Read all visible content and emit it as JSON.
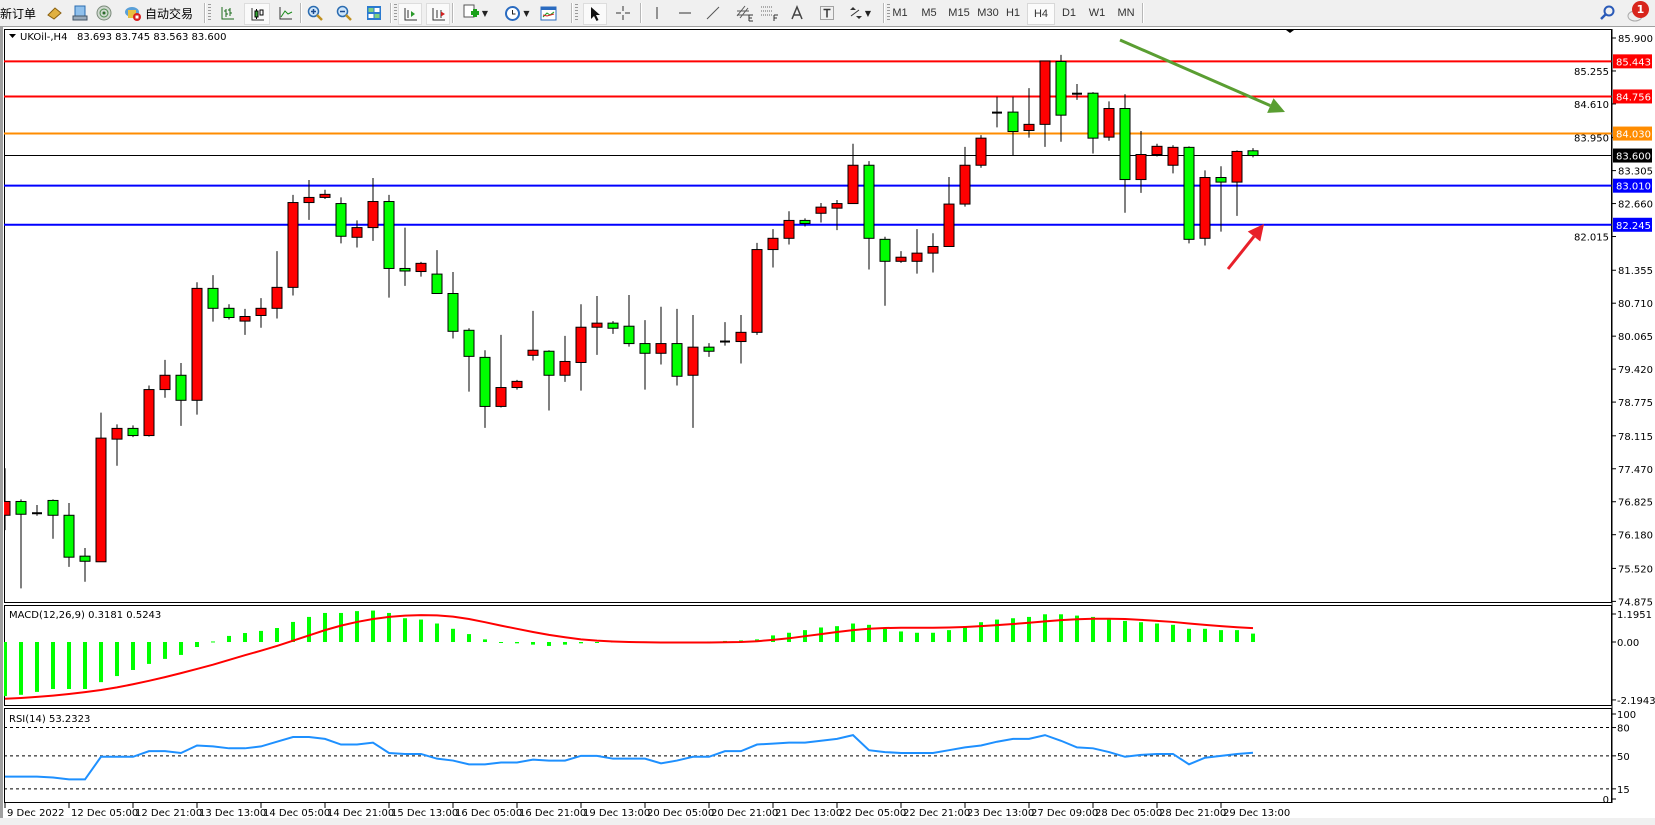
{
  "toolbar": {
    "new_order": "新订单",
    "autotrade": "自动交易",
    "periods": [
      "M1",
      "M5",
      "M15",
      "M30",
      "H1",
      "H4",
      "D1",
      "W1",
      "MN"
    ],
    "active_period": "H4",
    "notification_count": "1",
    "icons": [
      "book-icon",
      "terminal-icon",
      "signal-icon",
      "autotrade-icon",
      "bar-chart-icon",
      "candlestick-icon",
      "line-chart-icon",
      "zoom-in-icon",
      "zoom-out-icon",
      "tile-windows-icon",
      "auto-scroll-icon",
      "chart-shift-icon",
      "indicators-icon",
      "periods-clock-icon",
      "templates-icon",
      "cursor-icon",
      "crosshair-icon",
      "vertical-line-icon",
      "horizontal-line-icon",
      "trendline-icon",
      "equidistant-channel-icon",
      "fibonacci-icon",
      "text-icon",
      "text-label-icon",
      "arrows-icon",
      "search-icon",
      "notification-icon"
    ]
  },
  "chart": {
    "symbol": "UKOil-,H4",
    "ohlc": "83.693 83.745 83.563 83.600",
    "bull_color": "#ff0000",
    "bear_color": "#00ff00",
    "price_axis": [
      "85.900",
      "85.255",
      "84.610",
      "83.950",
      "83.305",
      "82.660",
      "82.015",
      "81.355",
      "80.710",
      "80.065",
      "79.420",
      "78.775",
      "78.115",
      "77.470",
      "76.825",
      "76.180",
      "75.520",
      "74.875"
    ],
    "levels": [
      {
        "price": "85.443",
        "color": "#ff0000",
        "text_color": "#ffffff"
      },
      {
        "price": "84.756",
        "color": "#ff0000",
        "text_color": "#ffffff"
      },
      {
        "price": "84.030",
        "color": "#ff8c00",
        "text_color": "#ffffff"
      },
      {
        "price": "83.600",
        "color": "#000000",
        "text_color": "#ffffff"
      },
      {
        "price": "83.010",
        "color": "#0000ff",
        "text_color": "#ffffff"
      },
      {
        "price": "82.245",
        "color": "#0000ff",
        "text_color": "#ffffff"
      }
    ],
    "time_labels": [
      "9 Dec 2022",
      "12 Dec 05:00",
      "12 Dec 21:00",
      "13 Dec 13:00",
      "14 Dec 05:00",
      "14 Dec 21:00",
      "15 Dec 13:00",
      "16 Dec 05:00",
      "16 Dec 21:00",
      "19 Dec 13:00",
      "20 Dec 05:00",
      "20 Dec 21:00",
      "21 Dec 13:00",
      "22 Dec 05:00",
      "22 Dec 21:00",
      "23 Dec 13:00",
      "27 Dec 09:00",
      "28 Dec 05:00",
      "28 Dec 21:00",
      "29 Dec 13:00"
    ],
    "candles_ohlc": [
      [
        76.56,
        77.48,
        76.27,
        76.83
      ],
      [
        76.83,
        76.87,
        75.13,
        76.58
      ],
      [
        76.6,
        76.76,
        76.55,
        76.59
      ],
      [
        76.85,
        76.87,
        76.1,
        76.56
      ],
      [
        76.56,
        76.8,
        75.55,
        75.74
      ],
      [
        75.76,
        75.92,
        75.26,
        75.66
      ],
      [
        75.65,
        78.57,
        75.65,
        78.07
      ],
      [
        78.05,
        78.34,
        77.53,
        78.26
      ],
      [
        78.26,
        78.32,
        78.09,
        78.12
      ],
      [
        78.12,
        79.1,
        78.1,
        79.02
      ],
      [
        79.02,
        79.6,
        78.86,
        79.3
      ],
      [
        79.3,
        79.54,
        78.31,
        78.81
      ],
      [
        78.81,
        81.12,
        78.53,
        81.0
      ],
      [
        81.0,
        81.26,
        80.35,
        80.61
      ],
      [
        80.61,
        80.69,
        80.39,
        80.43
      ],
      [
        80.36,
        80.6,
        80.09,
        80.45
      ],
      [
        80.47,
        80.81,
        80.23,
        80.61
      ],
      [
        80.61,
        81.73,
        80.41,
        81.02
      ],
      [
        81.02,
        82.83,
        80.86,
        82.68
      ],
      [
        82.68,
        83.12,
        82.34,
        82.78
      ],
      [
        82.78,
        82.93,
        82.75,
        82.84
      ],
      [
        82.66,
        82.78,
        81.88,
        82.02
      ],
      [
        82.0,
        82.33,
        81.8,
        82.19
      ],
      [
        82.19,
        83.16,
        81.93,
        82.7
      ],
      [
        82.7,
        82.83,
        80.82,
        81.39
      ],
      [
        81.39,
        82.19,
        81.05,
        81.34
      ],
      [
        81.33,
        81.52,
        81.23,
        81.49
      ],
      [
        81.28,
        81.75,
        80.9,
        80.9
      ],
      [
        80.9,
        81.32,
        80.02,
        80.16
      ],
      [
        80.18,
        80.22,
        78.98,
        79.67
      ],
      [
        79.65,
        79.79,
        78.27,
        78.69
      ],
      [
        78.69,
        80.09,
        78.67,
        79.06
      ],
      [
        79.06,
        79.21,
        79.02,
        79.18
      ],
      [
        79.69,
        80.56,
        79.59,
        79.79
      ],
      [
        79.77,
        79.79,
        78.61,
        79.3
      ],
      [
        79.3,
        80.07,
        79.17,
        79.57
      ],
      [
        79.55,
        80.69,
        79.0,
        80.24
      ],
      [
        80.24,
        80.85,
        79.7,
        80.32
      ],
      [
        80.32,
        80.36,
        80.11,
        80.22
      ],
      [
        80.26,
        80.87,
        79.86,
        79.92
      ],
      [
        79.92,
        80.38,
        79.02,
        79.73
      ],
      [
        79.73,
        80.64,
        79.51,
        79.92
      ],
      [
        79.92,
        80.6,
        79.1,
        79.28
      ],
      [
        79.3,
        80.48,
        78.27,
        79.85
      ],
      [
        79.85,
        79.93,
        79.66,
        79.77
      ],
      [
        79.96,
        80.34,
        79.88,
        79.95
      ],
      [
        79.96,
        80.48,
        79.53,
        80.14
      ],
      [
        80.14,
        81.89,
        80.09,
        81.76
      ],
      [
        81.76,
        82.16,
        81.41,
        81.98
      ],
      [
        81.98,
        82.51,
        81.86,
        82.33
      ],
      [
        82.33,
        82.37,
        82.21,
        82.27
      ],
      [
        82.47,
        82.67,
        82.29,
        82.59
      ],
      [
        82.57,
        82.73,
        82.14,
        82.66
      ],
      [
        82.66,
        83.83,
        82.66,
        83.41
      ],
      [
        83.41,
        83.49,
        81.37,
        81.98
      ],
      [
        81.96,
        82.01,
        80.66,
        81.53
      ],
      [
        81.53,
        81.73,
        81.5,
        81.61
      ],
      [
        81.53,
        82.16,
        81.29,
        81.69
      ],
      [
        81.69,
        82.08,
        81.31,
        81.82
      ],
      [
        81.82,
        83.18,
        81.82,
        82.65
      ],
      [
        82.65,
        83.77,
        82.6,
        83.41
      ],
      [
        83.41,
        84.0,
        83.36,
        83.94
      ],
      [
        84.44,
        84.75,
        84.15,
        84.43
      ],
      [
        84.45,
        84.75,
        83.6,
        84.07
      ],
      [
        84.09,
        84.92,
        83.95,
        84.21
      ],
      [
        84.21,
        85.45,
        83.77,
        85.45
      ],
      [
        85.44,
        85.57,
        83.87,
        84.39
      ],
      [
        84.81,
        85.0,
        84.69,
        84.8
      ],
      [
        84.82,
        84.84,
        83.64,
        83.94
      ],
      [
        83.96,
        84.66,
        83.89,
        84.52
      ],
      [
        84.52,
        84.8,
        82.48,
        83.13
      ],
      [
        83.13,
        84.08,
        82.87,
        83.62
      ],
      [
        83.62,
        83.83,
        83.58,
        83.78
      ],
      [
        83.41,
        83.8,
        83.25,
        83.76
      ],
      [
        83.76,
        83.78,
        81.88,
        81.96
      ],
      [
        81.98,
        83.31,
        81.84,
        83.17
      ],
      [
        83.17,
        83.39,
        82.11,
        83.08
      ],
      [
        83.08,
        83.7,
        82.42,
        83.68
      ],
      [
        83.693,
        83.745,
        83.563,
        83.6
      ]
    ],
    "arrow_colors": {
      "down_trend": "#5a9e32",
      "up_bounce": "#e8202a"
    }
  },
  "macd": {
    "label": "MACD(12,26,9) 0.3181 0.5243",
    "axis": [
      "1.1951",
      "0.00",
      "-2.1943"
    ],
    "histogram_color": "#00ff00",
    "signal_color": "#ff0000",
    "histogram": [
      -2.05,
      -2.0,
      -1.89,
      -1.78,
      -1.78,
      -1.78,
      -1.52,
      -1.29,
      -1.06,
      -0.83,
      -0.64,
      -0.49,
      -0.19,
      0.02,
      0.23,
      0.34,
      0.42,
      0.53,
      0.76,
      0.95,
      1.1,
      1.1,
      1.17,
      1.19,
      1.1,
      0.9,
      0.85,
      0.7,
      0.5,
      0.3,
      0.1,
      0.0,
      -0.05,
      -0.1,
      -0.15,
      -0.1,
      -0.05,
      0.0,
      0.02,
      0.03,
      0.02,
      0.0,
      -0.01,
      0.0,
      0.02,
      0.04,
      0.06,
      0.1,
      0.25,
      0.35,
      0.45,
      0.55,
      0.6,
      0.7,
      0.65,
      0.5,
      0.4,
      0.35,
      0.35,
      0.45,
      0.6,
      0.75,
      0.85,
      0.9,
      0.95,
      1.05,
      1.05,
      1.0,
      0.95,
      0.9,
      0.8,
      0.75,
      0.7,
      0.65,
      0.5,
      0.5,
      0.45,
      0.45,
      0.3181
    ],
    "signal": [
      -2.15,
      -2.12,
      -2.08,
      -2.03,
      -1.97,
      -1.9,
      -1.82,
      -1.72,
      -1.6,
      -1.47,
      -1.33,
      -1.18,
      -1.02,
      -0.86,
      -0.68,
      -0.5,
      -0.33,
      -0.15,
      0.05,
      0.25,
      0.45,
      0.62,
      0.76,
      0.87,
      0.95,
      1.0,
      1.02,
      1.01,
      0.96,
      0.87,
      0.75,
      0.62,
      0.5,
      0.38,
      0.27,
      0.18,
      0.1,
      0.05,
      0.02,
      0.0,
      -0.01,
      -0.02,
      -0.02,
      -0.02,
      -0.02,
      -0.01,
      0.0,
      0.03,
      0.08,
      0.14,
      0.22,
      0.3,
      0.38,
      0.45,
      0.5,
      0.53,
      0.54,
      0.54,
      0.54,
      0.55,
      0.57,
      0.6,
      0.64,
      0.68,
      0.73,
      0.78,
      0.83,
      0.86,
      0.88,
      0.88,
      0.87,
      0.84,
      0.8,
      0.76,
      0.7,
      0.65,
      0.6,
      0.56,
      0.5243
    ]
  },
  "rsi": {
    "label": "RSI(14) 53.2323",
    "axis": [
      "100",
      "80",
      "50",
      "15",
      "0"
    ],
    "levels": [
      80,
      50,
      15
    ],
    "line_color": "#1e90ff",
    "values": [
      28,
      28,
      28,
      27,
      25,
      25,
      49,
      49,
      49,
      55,
      55,
      53,
      61,
      60,
      58,
      58,
      60,
      65,
      70,
      70,
      68,
      62,
      62,
      64,
      53,
      52,
      52,
      47,
      45,
      41,
      41,
      43,
      43,
      46,
      45,
      45,
      50,
      50,
      47,
      47,
      47,
      42,
      45,
      49,
      49,
      55,
      55,
      62,
      63,
      64,
      64,
      66,
      68,
      72,
      56,
      54,
      53,
      53,
      53,
      56,
      59,
      61,
      65,
      68,
      68,
      72,
      66,
      59,
      58,
      54,
      49,
      51,
      52,
      52,
      41,
      48,
      50,
      52,
      53.2323
    ]
  }
}
